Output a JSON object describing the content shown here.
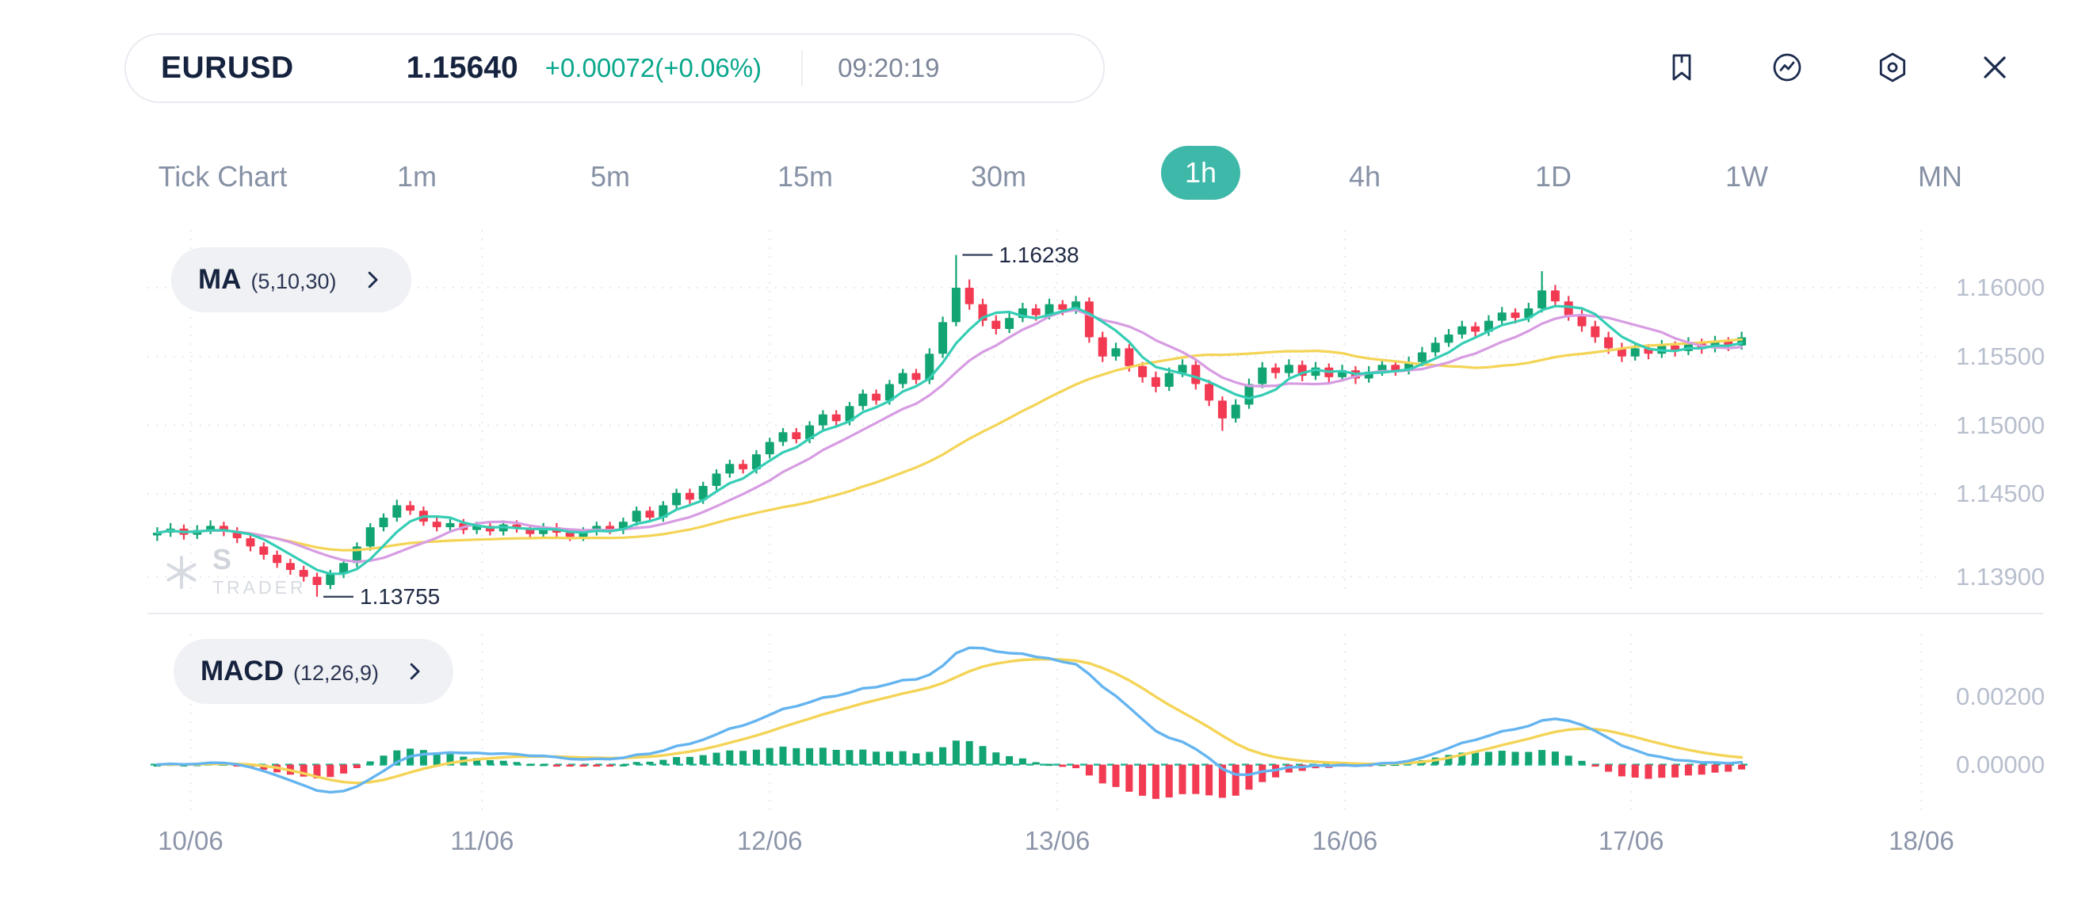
{
  "header": {
    "symbol": "EURUSD",
    "price": "1.15640",
    "change": "+0.00072(+0.06%)",
    "time": "09:20:19"
  },
  "toolbar": {
    "icons": [
      "bookmark-icon",
      "chart-pulse-icon",
      "settings-gear-icon",
      "close-icon"
    ]
  },
  "timeframes": {
    "items": [
      "Tick Chart",
      "1m",
      "5m",
      "15m",
      "30m",
      "1h",
      "4h",
      "1D",
      "1W",
      "MN"
    ],
    "active": "1h"
  },
  "indicators": {
    "ma": {
      "name": "MA",
      "params": "(5,10,30)",
      "periods": [
        5,
        10,
        30
      ]
    },
    "macd": {
      "name": "MACD",
      "params": "(12,26,9)",
      "fast": 12,
      "slow": 26,
      "signal": 9
    }
  },
  "watermark": {
    "line1": "S",
    "line2": "TRADER"
  },
  "chart_data": {
    "type": "candlestick+macd",
    "symbol": "EURUSD",
    "interval": "1h",
    "price_axis_labels": [
      "1.16000",
      "1.15500",
      "1.15000",
      "1.14500",
      "1.13900"
    ],
    "macd_axis_labels": [
      "0.00200",
      "0.00000"
    ],
    "date_labels": [
      {
        "label": "10/06",
        "idx": 2.5
      },
      {
        "label": "11/06",
        "idx": 24.4
      },
      {
        "label": "12/06",
        "idx": 46
      },
      {
        "label": "13/06",
        "idx": 67.6
      },
      {
        "label": "16/06",
        "idx": 89.2
      },
      {
        "label": "17/06",
        "idx": 110.7
      },
      {
        "label": "18/06",
        "idx": 132.5
      }
    ],
    "high_marker": {
      "label": "1.16238",
      "idx": 60
    },
    "low_marker": {
      "label": "1.13755",
      "idx": 12
    },
    "colors": {
      "up": "#12a473",
      "down": "#f23a52",
      "ma5": "#35cdb5",
      "ma10": "#d79ce2",
      "ma30": "#f4d456",
      "macd": "#64b4f0",
      "signal": "#f4d456",
      "zero": "#25bb9b",
      "accent": "#3eb8a9",
      "text_dark": "#16233f",
      "change_green": "#0aa78c"
    },
    "candles": [
      [
        1.142,
        1.1426,
        1.1416,
        1.1422
      ],
      [
        1.1422,
        1.1429,
        1.1419,
        1.1425
      ],
      [
        1.1425,
        1.1428,
        1.1417,
        1.14205
      ],
      [
        1.14205,
        1.14275,
        1.14175,
        1.1424
      ],
      [
        1.1424,
        1.1431,
        1.1421,
        1.1427
      ],
      [
        1.1427,
        1.143,
        1.14195,
        1.1423
      ],
      [
        1.1423,
        1.1426,
        1.14145,
        1.1418
      ],
      [
        1.1418,
        1.1421,
        1.14085,
        1.1412
      ],
      [
        1.1412,
        1.1415,
        1.14025,
        1.1406
      ],
      [
        1.1406,
        1.1409,
        1.13965,
        1.14
      ],
      [
        1.14,
        1.1403,
        1.13915,
        1.1395
      ],
      [
        1.1395,
        1.1398,
        1.13865,
        1.139
      ],
      [
        1.139,
        1.1393,
        1.13755,
        1.1384
      ],
      [
        1.1384,
        1.1395,
        1.1381,
        1.1392
      ],
      [
        1.1392,
        1.1403,
        1.1389,
        1.14
      ],
      [
        1.14,
        1.1415,
        1.1397,
        1.1412
      ],
      [
        1.1412,
        1.1429,
        1.1409,
        1.1426
      ],
      [
        1.1426,
        1.1436,
        1.1423,
        1.1433
      ],
      [
        1.1433,
        1.1446,
        1.143,
        1.1442
      ],
      [
        1.1442,
        1.1445,
        1.1435,
        1.1438
      ],
      [
        1.1438,
        1.1441,
        1.1427,
        1.143
      ],
      [
        1.143,
        1.1433,
        1.1423,
        1.1426
      ],
      [
        1.1426,
        1.1432,
        1.1423,
        1.1429
      ],
      [
        1.1429,
        1.1432,
        1.1421,
        1.1424
      ],
      [
        1.1424,
        1.143,
        1.1421,
        1.1427
      ],
      [
        1.1427,
        1.143,
        1.142,
        1.1423
      ],
      [
        1.1423,
        1.1431,
        1.142,
        1.1428
      ],
      [
        1.1428,
        1.1431,
        1.1422,
        1.1425
      ],
      [
        1.1425,
        1.1428,
        1.1418,
        1.1421
      ],
      [
        1.1421,
        1.1429,
        1.1418,
        1.1426
      ],
      [
        1.1426,
        1.1429,
        1.1419,
        1.1422
      ],
      [
        1.1422,
        1.1425,
        1.1416,
        1.1419
      ],
      [
        1.1419,
        1.1426,
        1.1416,
        1.1423
      ],
      [
        1.1423,
        1.143,
        1.142,
        1.1427
      ],
      [
        1.1427,
        1.143,
        1.1421,
        1.1424
      ],
      [
        1.1424,
        1.1433,
        1.1421,
        1.143
      ],
      [
        1.143,
        1.1441,
        1.1427,
        1.1438
      ],
      [
        1.1438,
        1.1441,
        1.143,
        1.1433
      ],
      [
        1.1433,
        1.1445,
        1.143,
        1.1442
      ],
      [
        1.1442,
        1.1454,
        1.1439,
        1.1451
      ],
      [
        1.1451,
        1.1454,
        1.1443,
        1.1446
      ],
      [
        1.1446,
        1.1459,
        1.1443,
        1.1456
      ],
      [
        1.1456,
        1.1468,
        1.1453,
        1.1465
      ],
      [
        1.1465,
        1.1475,
        1.1462,
        1.1472
      ],
      [
        1.1472,
        1.1475,
        1.1465,
        1.1468
      ],
      [
        1.1468,
        1.1482,
        1.1465,
        1.1479
      ],
      [
        1.1479,
        1.1491,
        1.1476,
        1.1488
      ],
      [
        1.1488,
        1.1498,
        1.1485,
        1.1495
      ],
      [
        1.1495,
        1.1498,
        1.1487,
        1.149
      ],
      [
        1.149,
        1.1503,
        1.1487,
        1.15
      ],
      [
        1.15,
        1.1511,
        1.1497,
        1.1508
      ],
      [
        1.1508,
        1.1511,
        1.15,
        1.1503
      ],
      [
        1.1503,
        1.1517,
        1.15,
        1.1514
      ],
      [
        1.1514,
        1.1526,
        1.1511,
        1.1523
      ],
      [
        1.1523,
        1.1526,
        1.1515,
        1.1518
      ],
      [
        1.1518,
        1.1533,
        1.1515,
        1.153
      ],
      [
        1.153,
        1.1541,
        1.1527,
        1.1538
      ],
      [
        1.1538,
        1.1541,
        1.153,
        1.1533
      ],
      [
        1.1533,
        1.1556,
        1.153,
        1.1552
      ],
      [
        1.1552,
        1.1579,
        1.1549,
        1.1575
      ],
      [
        1.1575,
        1.16238,
        1.1572,
        1.16
      ],
      [
        1.16,
        1.1606,
        1.1584,
        1.1588
      ],
      [
        1.1588,
        1.1592,
        1.1572,
        1.1576
      ],
      [
        1.1576,
        1.158,
        1.1566,
        1.157
      ],
      [
        1.157,
        1.1582,
        1.1567,
        1.1578
      ],
      [
        1.1578,
        1.1589,
        1.1575,
        1.1585
      ],
      [
        1.1585,
        1.1588,
        1.1576,
        1.158
      ],
      [
        1.158,
        1.1592,
        1.1577,
        1.1588
      ],
      [
        1.1588,
        1.1591,
        1.158,
        1.1584
      ],
      [
        1.1584,
        1.1594,
        1.1581,
        1.159
      ],
      [
        1.159,
        1.1593,
        1.156,
        1.1564
      ],
      [
        1.1564,
        1.1568,
        1.1546,
        1.155
      ],
      [
        1.155,
        1.156,
        1.1547,
        1.1556
      ],
      [
        1.1556,
        1.1559,
        1.1539,
        1.1543
      ],
      [
        1.1543,
        1.1546,
        1.1531,
        1.1535
      ],
      [
        1.1535,
        1.1539,
        1.1524,
        1.1528
      ],
      [
        1.1528,
        1.1542,
        1.1525,
        1.1538
      ],
      [
        1.1538,
        1.1548,
        1.1535,
        1.1544
      ],
      [
        1.1544,
        1.1547,
        1.1526,
        1.153
      ],
      [
        1.153,
        1.1533,
        1.1514,
        1.1518
      ],
      [
        1.1518,
        1.1521,
        1.1496,
        1.1505
      ],
      [
        1.1505,
        1.1519,
        1.1502,
        1.1515
      ],
      [
        1.1515,
        1.1534,
        1.1512,
        1.153
      ],
      [
        1.153,
        1.1546,
        1.1527,
        1.1542
      ],
      [
        1.1542,
        1.1545,
        1.1534,
        1.1538
      ],
      [
        1.1538,
        1.1548,
        1.1535,
        1.1544
      ],
      [
        1.1544,
        1.1547,
        1.1532,
        1.1536
      ],
      [
        1.1536,
        1.1546,
        1.1533,
        1.1542
      ],
      [
        1.1542,
        1.1545,
        1.1531,
        1.1535
      ],
      [
        1.1535,
        1.1544,
        1.1532,
        1.154
      ],
      [
        1.154,
        1.1543,
        1.153,
        1.1534
      ],
      [
        1.1534,
        1.1543,
        1.1531,
        1.1539
      ],
      [
        1.1539,
        1.1548,
        1.1536,
        1.1544
      ],
      [
        1.1544,
        1.1547,
        1.1536,
        1.154
      ],
      [
        1.154,
        1.155,
        1.1537,
        1.1546
      ],
      [
        1.1546,
        1.1557,
        1.1543,
        1.1553
      ],
      [
        1.1553,
        1.1564,
        1.155,
        1.156
      ],
      [
        1.156,
        1.157,
        1.1557,
        1.1566
      ],
      [
        1.1566,
        1.1576,
        1.1563,
        1.1572
      ],
      [
        1.1572,
        1.1575,
        1.1564,
        1.1568
      ],
      [
        1.1568,
        1.158,
        1.1565,
        1.1576
      ],
      [
        1.1576,
        1.1586,
        1.1573,
        1.1582
      ],
      [
        1.1582,
        1.1585,
        1.1574,
        1.1578
      ],
      [
        1.1578,
        1.1589,
        1.1575,
        1.1585
      ],
      [
        1.1585,
        1.1612,
        1.1582,
        1.1598
      ],
      [
        1.1598,
        1.1602,
        1.1586,
        1.159
      ],
      [
        1.159,
        1.1594,
        1.1576,
        1.158
      ],
      [
        1.158,
        1.1584,
        1.1568,
        1.1572
      ],
      [
        1.1572,
        1.1576,
        1.156,
        1.1564
      ],
      [
        1.1564,
        1.1568,
        1.1552,
        1.1556
      ],
      [
        1.1556,
        1.156,
        1.1546,
        1.155
      ],
      [
        1.155,
        1.156,
        1.1547,
        1.1556
      ],
      [
        1.1556,
        1.1559,
        1.1548,
        1.1552
      ],
      [
        1.1552,
        1.1562,
        1.1549,
        1.1558
      ],
      [
        1.1558,
        1.1561,
        1.155,
        1.1554
      ],
      [
        1.1554,
        1.1564,
        1.1551,
        1.156
      ],
      [
        1.156,
        1.1563,
        1.1552,
        1.1556
      ],
      [
        1.1556,
        1.1565,
        1.1553,
        1.1561
      ],
      [
        1.1561,
        1.1564,
        1.1554,
        1.1558
      ],
      [
        1.1558,
        1.1568,
        1.1555,
        1.1564
      ]
    ]
  }
}
